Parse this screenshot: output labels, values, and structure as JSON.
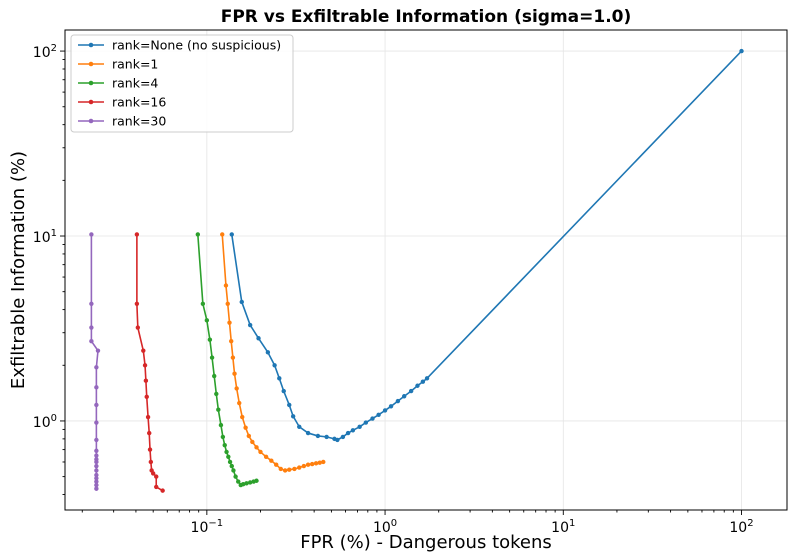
{
  "chart_data": {
    "type": "line",
    "title": "FPR vs Exfiltrable Information (sigma=1.0)",
    "xlabel": "FPR (%) - Dangerous tokens",
    "ylabel": "Exfiltrable Information (%)",
    "xscale": "log",
    "yscale": "log",
    "xlim": [
      0.016,
      180
    ],
    "ylim": [
      0.33,
      130
    ],
    "grid": true,
    "legend_position": "top-left",
    "xticks": [
      {
        "base": "10",
        "exp": "−1",
        "value": 0.1
      },
      {
        "base": "10",
        "exp": "0",
        "value": 1
      },
      {
        "base": "10",
        "exp": "1",
        "value": 10
      },
      {
        "base": "10",
        "exp": "2",
        "value": 100
      }
    ],
    "yticks": [
      {
        "base": "10",
        "exp": "0",
        "value": 1
      },
      {
        "base": "10",
        "exp": "1",
        "value": 10
      },
      {
        "base": "10",
        "exp": "2",
        "value": 100
      }
    ],
    "series": [
      {
        "name": "rank=None (no suspicious)",
        "color": "#1f77b4",
        "x": [
          0.138,
          0.157,
          0.175,
          0.195,
          0.22,
          0.24,
          0.255,
          0.27,
          0.29,
          0.305,
          0.33,
          0.37,
          0.42,
          0.47,
          0.52,
          0.54,
          0.58,
          0.62,
          0.66,
          0.72,
          0.78,
          0.85,
          0.92,
          1.0,
          1.08,
          1.18,
          1.28,
          1.4,
          1.52,
          1.63,
          1.72,
          100
        ],
        "y": [
          10.2,
          4.4,
          3.3,
          2.8,
          2.35,
          2.0,
          1.7,
          1.45,
          1.22,
          1.06,
          0.93,
          0.86,
          0.83,
          0.82,
          0.8,
          0.79,
          0.82,
          0.86,
          0.89,
          0.93,
          0.98,
          1.03,
          1.08,
          1.14,
          1.2,
          1.28,
          1.36,
          1.45,
          1.55,
          1.63,
          1.7,
          100
        ]
      },
      {
        "name": "rank=1",
        "color": "#ff7f0e",
        "x": [
          0.122,
          0.128,
          0.131,
          0.134,
          0.137,
          0.14,
          0.143,
          0.147,
          0.152,
          0.158,
          0.165,
          0.172,
          0.18,
          0.19,
          0.2,
          0.215,
          0.23,
          0.245,
          0.26,
          0.275,
          0.29,
          0.31,
          0.33,
          0.35,
          0.37,
          0.39,
          0.41,
          0.43,
          0.45
        ],
        "y": [
          10.2,
          5.4,
          4.3,
          3.4,
          2.7,
          2.2,
          1.8,
          1.5,
          1.25,
          1.05,
          0.92,
          0.83,
          0.77,
          0.72,
          0.68,
          0.64,
          0.61,
          0.58,
          0.55,
          0.54,
          0.545,
          0.55,
          0.56,
          0.57,
          0.58,
          0.585,
          0.59,
          0.595,
          0.6
        ]
      },
      {
        "name": "rank=4",
        "color": "#2ca02c",
        "x": [
          0.089,
          0.095,
          0.1,
          0.104,
          0.107,
          0.11,
          0.113,
          0.116,
          0.12,
          0.123,
          0.126,
          0.129,
          0.132,
          0.135,
          0.138,
          0.141,
          0.145,
          0.15,
          0.155,
          0.16,
          0.167,
          0.175,
          0.183,
          0.19
        ],
        "y": [
          10.2,
          4.3,
          3.5,
          2.75,
          2.2,
          1.75,
          1.4,
          1.15,
          0.95,
          0.82,
          0.74,
          0.68,
          0.64,
          0.6,
          0.57,
          0.54,
          0.5,
          0.47,
          0.45,
          0.455,
          0.46,
          0.465,
          0.47,
          0.475
        ]
      },
      {
        "name": "rank=16",
        "color": "#d62728",
        "x": [
          0.0405,
          0.0405,
          0.041,
          0.044,
          0.045,
          0.0455,
          0.046,
          0.0468,
          0.0475,
          0.048,
          0.0485,
          0.049,
          0.05,
          0.052,
          0.052,
          0.0565
        ],
        "y": [
          10.2,
          4.3,
          3.2,
          2.4,
          2.0,
          1.65,
          1.35,
          1.05,
          0.86,
          0.7,
          0.6,
          0.54,
          0.52,
          0.5,
          0.44,
          0.42
        ]
      },
      {
        "name": "rank=30",
        "color": "#9467bd",
        "x": [
          0.0225,
          0.0225,
          0.0225,
          0.0225,
          0.0245,
          0.024,
          0.024,
          0.024,
          0.024,
          0.024,
          0.024,
          0.024,
          0.024,
          0.024,
          0.024,
          0.024,
          0.024,
          0.024,
          0.024,
          0.024,
          0.024
        ],
        "y": [
          10.2,
          4.3,
          3.2,
          2.7,
          2.4,
          1.95,
          1.52,
          1.22,
          0.98,
          0.79,
          0.69,
          0.65,
          0.62,
          0.6,
          0.57,
          0.54,
          0.51,
          0.49,
          0.47,
          0.45,
          0.43
        ]
      }
    ]
  }
}
